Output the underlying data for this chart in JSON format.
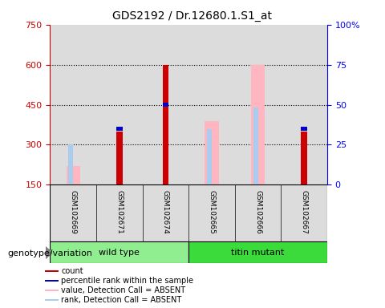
{
  "title": "GDS2192 / Dr.12680.1.S1_at",
  "samples": [
    "GSM102669",
    "GSM102671",
    "GSM102674",
    "GSM102665",
    "GSM102666",
    "GSM102667"
  ],
  "count": [
    null,
    350,
    600,
    null,
    null,
    350
  ],
  "percentile_rank": [
    null,
    360,
    450,
    null,
    null,
    360
  ],
  "value_absent": [
    220,
    null,
    null,
    390,
    600,
    null
  ],
  "rank_absent": [
    300,
    null,
    null,
    360,
    440,
    null
  ],
  "ylim_left": [
    150,
    750
  ],
  "ylim_right": [
    0,
    100
  ],
  "yticks_left": [
    150,
    300,
    450,
    600,
    750
  ],
  "yticks_right": [
    0,
    25,
    50,
    75,
    100
  ],
  "count_color": "#CC0000",
  "percentile_color": "#0000CC",
  "value_absent_color": "#FFB6C1",
  "rank_absent_color": "#AACCEE",
  "bg_color": "#DCDCDC",
  "wild_type_color": "#90EE90",
  "titin_mutant_color": "#3ADB3A",
  "genotype_label": "genotype/variation",
  "wild_type_label": "wild type",
  "titin_mutant_label": "titin mutant"
}
